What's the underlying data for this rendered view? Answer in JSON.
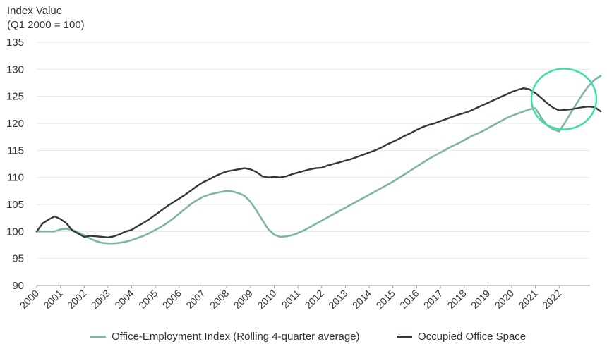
{
  "chart_data": {
    "type": "line",
    "ylabel_lines": [
      "Index Value",
      "(Q1 2000 = 100)"
    ],
    "ylim": [
      90,
      135
    ],
    "yticks": [
      90,
      95,
      100,
      105,
      110,
      115,
      120,
      125,
      130,
      135
    ],
    "xlim": [
      2000,
      2023.3
    ],
    "xticks": [
      "2000",
      "2001",
      "2002",
      "2003",
      "2004",
      "2005",
      "2006",
      "2007",
      "2008",
      "2009",
      "2010",
      "2011",
      "2012",
      "2013",
      "2014",
      "2015",
      "2016",
      "2017",
      "2018",
      "2019",
      "2020",
      "2021",
      "2022"
    ],
    "grid": "horizontal",
    "legend_position": "bottom",
    "highlight_circle": {
      "x": 2022.2,
      "y": 124.5,
      "color": "#3fdcae"
    },
    "series": [
      {
        "name": "Office-Employment Index (Rolling 4-quarter average)",
        "color": "#7fb5a5",
        "points": [
          [
            2000.0,
            100.0
          ],
          [
            2000.25,
            100.0
          ],
          [
            2000.5,
            100.0
          ],
          [
            2000.75,
            100.0
          ],
          [
            2001.0,
            100.4
          ],
          [
            2001.25,
            100.5
          ],
          [
            2001.5,
            100.3
          ],
          [
            2001.75,
            99.8
          ],
          [
            2002.0,
            99.3
          ],
          [
            2002.25,
            98.7
          ],
          [
            2002.5,
            98.2
          ],
          [
            2002.75,
            97.9
          ],
          [
            2003.0,
            97.8
          ],
          [
            2003.25,
            97.8
          ],
          [
            2003.5,
            97.9
          ],
          [
            2003.75,
            98.1
          ],
          [
            2004.0,
            98.4
          ],
          [
            2004.25,
            98.8
          ],
          [
            2004.5,
            99.2
          ],
          [
            2004.75,
            99.7
          ],
          [
            2005.0,
            100.3
          ],
          [
            2005.25,
            100.9
          ],
          [
            2005.5,
            101.6
          ],
          [
            2005.75,
            102.4
          ],
          [
            2006.0,
            103.3
          ],
          [
            2006.25,
            104.2
          ],
          [
            2006.5,
            105.1
          ],
          [
            2006.75,
            105.8
          ],
          [
            2007.0,
            106.4
          ],
          [
            2007.25,
            106.8
          ],
          [
            2007.5,
            107.1
          ],
          [
            2007.75,
            107.3
          ],
          [
            2008.0,
            107.5
          ],
          [
            2008.25,
            107.4
          ],
          [
            2008.5,
            107.1
          ],
          [
            2008.75,
            106.6
          ],
          [
            2009.0,
            105.5
          ],
          [
            2009.25,
            103.9
          ],
          [
            2009.5,
            102.1
          ],
          [
            2009.75,
            100.4
          ],
          [
            2010.0,
            99.4
          ],
          [
            2010.25,
            99.0
          ],
          [
            2010.5,
            99.1
          ],
          [
            2010.75,
            99.3
          ],
          [
            2011.0,
            99.7
          ],
          [
            2011.25,
            100.2
          ],
          [
            2011.5,
            100.8
          ],
          [
            2011.75,
            101.4
          ],
          [
            2012.0,
            102.0
          ],
          [
            2012.25,
            102.6
          ],
          [
            2012.5,
            103.2
          ],
          [
            2012.75,
            103.8
          ],
          [
            2013.0,
            104.4
          ],
          [
            2013.25,
            105.0
          ],
          [
            2013.5,
            105.6
          ],
          [
            2013.75,
            106.2
          ],
          [
            2014.0,
            106.8
          ],
          [
            2014.25,
            107.4
          ],
          [
            2014.5,
            108.0
          ],
          [
            2014.75,
            108.6
          ],
          [
            2015.0,
            109.2
          ],
          [
            2015.25,
            109.9
          ],
          [
            2015.5,
            110.6
          ],
          [
            2015.75,
            111.3
          ],
          [
            2016.0,
            112.0
          ],
          [
            2016.25,
            112.7
          ],
          [
            2016.5,
            113.4
          ],
          [
            2016.75,
            114.0
          ],
          [
            2017.0,
            114.6
          ],
          [
            2017.25,
            115.2
          ],
          [
            2017.5,
            115.8
          ],
          [
            2017.75,
            116.3
          ],
          [
            2018.0,
            116.9
          ],
          [
            2018.25,
            117.5
          ],
          [
            2018.5,
            118.0
          ],
          [
            2018.75,
            118.5
          ],
          [
            2019.0,
            119.1
          ],
          [
            2019.25,
            119.7
          ],
          [
            2019.5,
            120.3
          ],
          [
            2019.75,
            120.9
          ],
          [
            2020.0,
            121.4
          ],
          [
            2020.25,
            121.8
          ],
          [
            2020.5,
            122.2
          ],
          [
            2020.75,
            122.6
          ],
          [
            2021.0,
            122.8
          ],
          [
            2021.25,
            121.0
          ],
          [
            2021.5,
            119.6
          ],
          [
            2021.75,
            118.9
          ],
          [
            2022.0,
            118.5
          ],
          [
            2022.25,
            120.2
          ],
          [
            2022.5,
            122.0
          ],
          [
            2022.75,
            123.8
          ],
          [
            2023.0,
            125.5
          ],
          [
            2023.25,
            127.0
          ],
          [
            2023.5,
            128.1
          ],
          [
            2023.75,
            128.8
          ]
        ]
      },
      {
        "name": "Occupied Office Space",
        "color": "#2f3b39",
        "points": [
          [
            2000.0,
            100.0
          ],
          [
            2000.25,
            101.5
          ],
          [
            2000.5,
            102.2
          ],
          [
            2000.75,
            102.8
          ],
          [
            2001.0,
            102.3
          ],
          [
            2001.25,
            101.5
          ],
          [
            2001.5,
            100.2
          ],
          [
            2001.75,
            99.6
          ],
          [
            2002.0,
            99.0
          ],
          [
            2002.25,
            99.2
          ],
          [
            2002.5,
            99.1
          ],
          [
            2002.75,
            99.0
          ],
          [
            2003.0,
            98.9
          ],
          [
            2003.25,
            99.1
          ],
          [
            2003.5,
            99.5
          ],
          [
            2003.75,
            100.0
          ],
          [
            2004.0,
            100.3
          ],
          [
            2004.25,
            101.0
          ],
          [
            2004.5,
            101.6
          ],
          [
            2004.75,
            102.3
          ],
          [
            2005.0,
            103.1
          ],
          [
            2005.25,
            103.9
          ],
          [
            2005.5,
            104.7
          ],
          [
            2005.75,
            105.4
          ],
          [
            2006.0,
            106.1
          ],
          [
            2006.25,
            106.8
          ],
          [
            2006.5,
            107.6
          ],
          [
            2006.75,
            108.4
          ],
          [
            2007.0,
            109.1
          ],
          [
            2007.25,
            109.6
          ],
          [
            2007.5,
            110.2
          ],
          [
            2007.75,
            110.7
          ],
          [
            2008.0,
            111.1
          ],
          [
            2008.25,
            111.3
          ],
          [
            2008.5,
            111.5
          ],
          [
            2008.75,
            111.7
          ],
          [
            2009.0,
            111.5
          ],
          [
            2009.25,
            111.0
          ],
          [
            2009.5,
            110.2
          ],
          [
            2009.75,
            110.0
          ],
          [
            2010.0,
            110.1
          ],
          [
            2010.25,
            110.0
          ],
          [
            2010.5,
            110.2
          ],
          [
            2010.75,
            110.6
          ],
          [
            2011.0,
            110.9
          ],
          [
            2011.25,
            111.2
          ],
          [
            2011.5,
            111.5
          ],
          [
            2011.75,
            111.7
          ],
          [
            2012.0,
            111.8
          ],
          [
            2012.25,
            112.2
          ],
          [
            2012.5,
            112.5
          ],
          [
            2012.75,
            112.8
          ],
          [
            2013.0,
            113.1
          ],
          [
            2013.25,
            113.4
          ],
          [
            2013.5,
            113.8
          ],
          [
            2013.75,
            114.2
          ],
          [
            2014.0,
            114.6
          ],
          [
            2014.25,
            115.0
          ],
          [
            2014.5,
            115.5
          ],
          [
            2014.75,
            116.1
          ],
          [
            2015.0,
            116.6
          ],
          [
            2015.25,
            117.1
          ],
          [
            2015.5,
            117.7
          ],
          [
            2015.75,
            118.2
          ],
          [
            2016.0,
            118.8
          ],
          [
            2016.25,
            119.3
          ],
          [
            2016.5,
            119.7
          ],
          [
            2016.75,
            120.0
          ],
          [
            2017.0,
            120.4
          ],
          [
            2017.25,
            120.8
          ],
          [
            2017.5,
            121.2
          ],
          [
            2017.75,
            121.6
          ],
          [
            2018.0,
            121.9
          ],
          [
            2018.25,
            122.3
          ],
          [
            2018.5,
            122.8
          ],
          [
            2018.75,
            123.3
          ],
          [
            2019.0,
            123.8
          ],
          [
            2019.25,
            124.3
          ],
          [
            2019.5,
            124.8
          ],
          [
            2019.75,
            125.3
          ],
          [
            2020.0,
            125.8
          ],
          [
            2020.25,
            126.2
          ],
          [
            2020.5,
            126.5
          ],
          [
            2020.75,
            126.3
          ],
          [
            2021.0,
            125.6
          ],
          [
            2021.25,
            124.7
          ],
          [
            2021.5,
            123.7
          ],
          [
            2021.75,
            122.9
          ],
          [
            2022.0,
            122.4
          ],
          [
            2022.25,
            122.5
          ],
          [
            2022.5,
            122.6
          ],
          [
            2022.75,
            122.8
          ],
          [
            2023.0,
            123.0
          ],
          [
            2023.25,
            123.1
          ],
          [
            2023.5,
            123.0
          ],
          [
            2023.75,
            122.2
          ]
        ]
      }
    ]
  }
}
